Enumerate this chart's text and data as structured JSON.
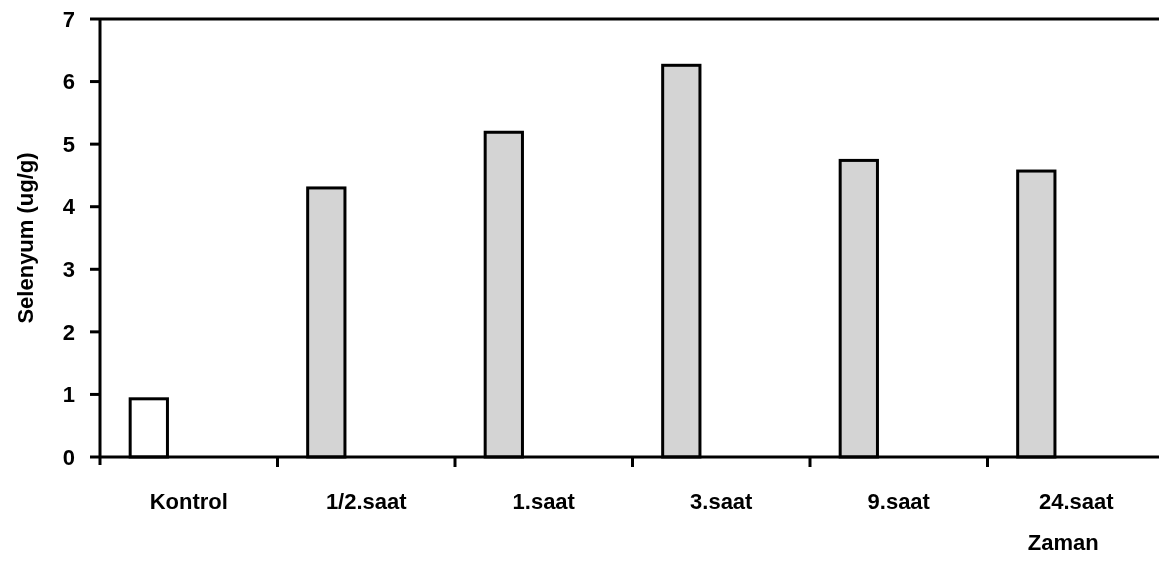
{
  "chart_data": {
    "type": "bar",
    "ylabel": "Selenyum (ug/g)",
    "xlabel": "Zaman",
    "categories": [
      "Kontrol",
      "1/2.saat",
      "1.saat",
      "3.saat",
      "9.saat",
      "24.saat"
    ],
    "values": [
      0.93,
      4.3,
      5.19,
      6.26,
      4.74,
      4.57
    ],
    "colors": [
      "#ffffff",
      "#d4d4d4",
      "#d4d4d4",
      "#d4d4d4",
      "#d4d4d4",
      "#d4d4d4"
    ],
    "ylim": [
      0,
      7
    ],
    "yticks": [
      0,
      1,
      2,
      3,
      4,
      5,
      6,
      7
    ],
    "grid": false
  }
}
